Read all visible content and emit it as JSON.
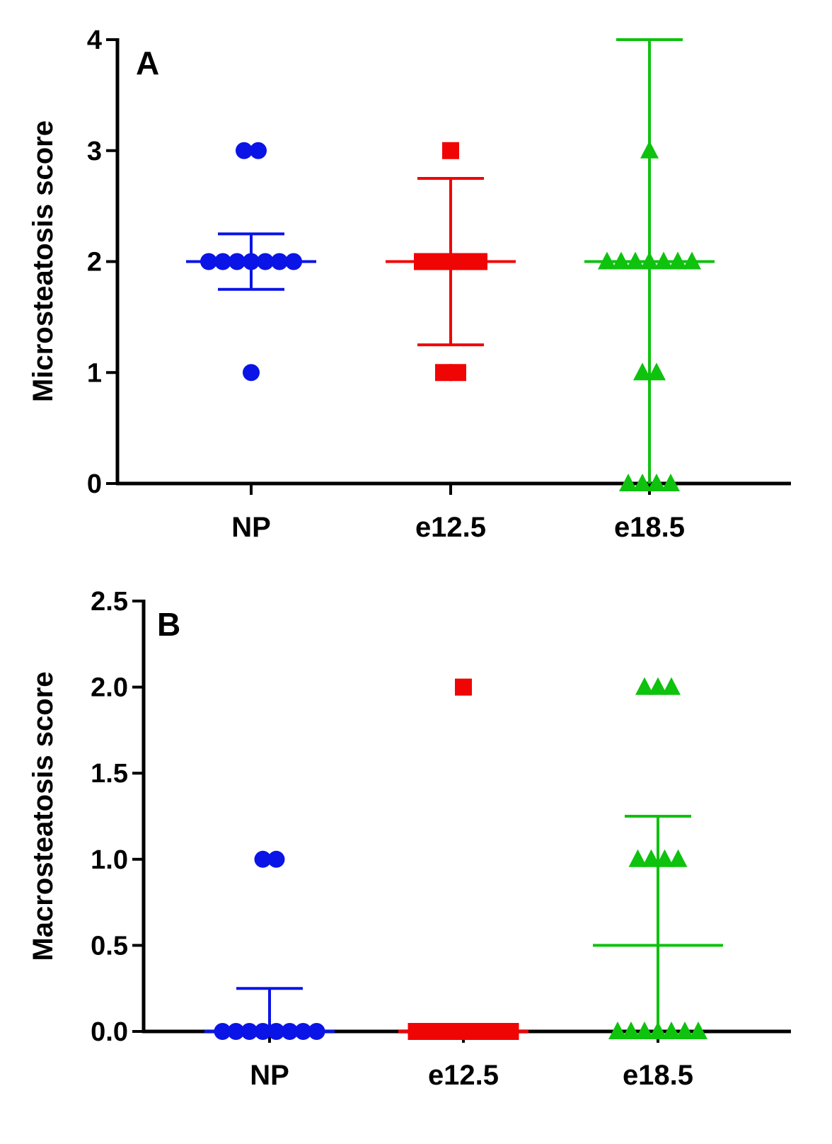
{
  "colors": {
    "NP": "#0a14e6",
    "e12.5": "#f00505",
    "e18.5": "#0ec20e",
    "axis": "#000000"
  },
  "chart_data": [
    {
      "type": "scatter",
      "panel_label": "A",
      "ylabel": "Microsteatosis score",
      "ylim": [
        0,
        4
      ],
      "yticks": [
        0,
        1,
        2,
        3,
        4
      ],
      "ytick_labels": [
        "0",
        "1",
        "2",
        "3",
        "4"
      ],
      "categories": [
        "NP",
        "e12.5",
        "e18.5"
      ],
      "series": [
        {
          "name": "NP",
          "marker": "circle",
          "values": [
            3,
            3,
            2,
            2,
            2,
            2,
            2,
            2,
            2,
            1
          ],
          "mean": 2.0,
          "error": 0.25
        },
        {
          "name": "e12.5",
          "marker": "square",
          "values": [
            3,
            2,
            2,
            2,
            2,
            2,
            1,
            1
          ],
          "mean": 2.0,
          "error": 0.75
        },
        {
          "name": "e18.5",
          "marker": "triangle",
          "values": [
            3,
            2,
            2,
            2,
            2,
            2,
            2,
            2,
            1,
            1,
            0,
            0,
            0,
            0
          ],
          "mean": 2.0,
          "error": 2.0
        }
      ]
    },
    {
      "type": "scatter",
      "panel_label": "B",
      "ylabel": "Macrosteatosis score",
      "ylim": [
        0,
        2.5
      ],
      "yticks": [
        0,
        0.5,
        1,
        1.5,
        2,
        2.5
      ],
      "ytick_labels": [
        "0.0",
        "0.5",
        "1.0",
        "1.5",
        "2.0",
        "2.5"
      ],
      "categories": [
        "NP",
        "e12.5",
        "e18.5"
      ],
      "series": [
        {
          "name": "NP",
          "marker": "circle",
          "values": [
            1,
            1,
            0,
            0,
            0,
            0,
            0,
            0,
            0,
            0
          ],
          "mean": 0.0,
          "error": 0.25
        },
        {
          "name": "e12.5",
          "marker": "square",
          "values": [
            2,
            0,
            0,
            0,
            0,
            0,
            0,
            0,
            0
          ],
          "mean": 0.0,
          "error": 0.0
        },
        {
          "name": "e18.5",
          "marker": "triangle",
          "values": [
            2,
            2,
            2,
            1,
            1,
            1,
            1,
            0,
            0,
            0,
            0,
            0,
            0,
            0
          ],
          "mean": 0.5,
          "error": 0.75
        }
      ]
    }
  ]
}
